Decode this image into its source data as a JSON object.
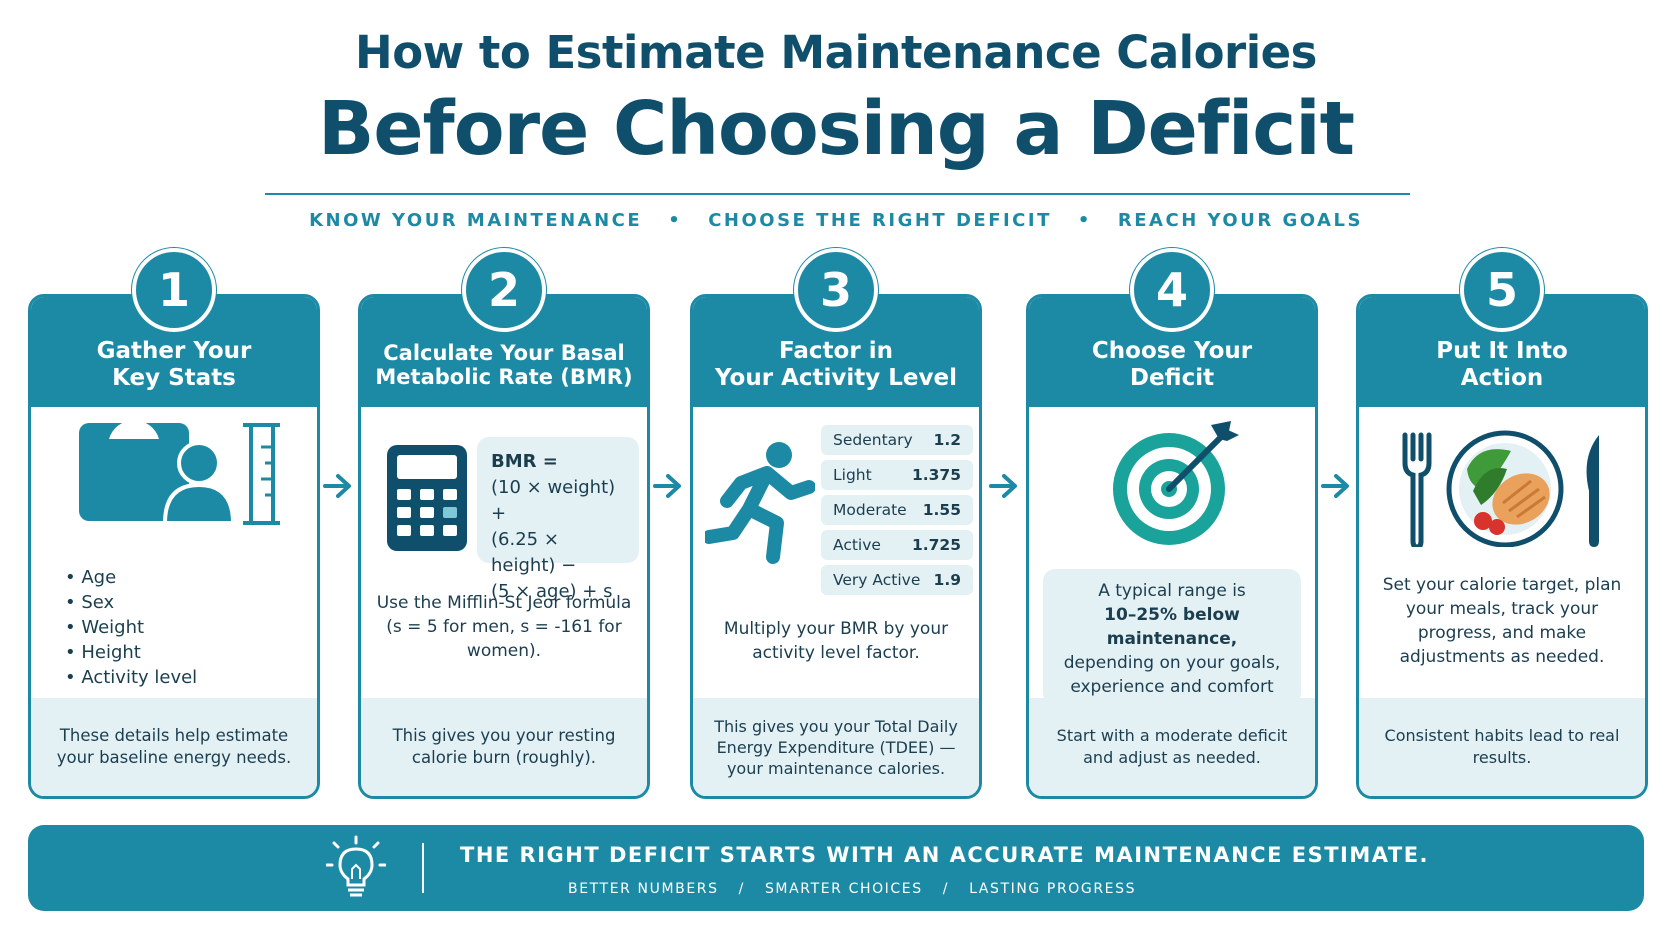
{
  "header": {
    "title_line1": "How to Estimate Maintenance Calories",
    "title_line2": "Before Choosing a Deficit",
    "tagline": [
      "KNOW YOUR MAINTENANCE",
      "CHOOSE THE RIGHT DEFICIT",
      "REACH YOUR GOALS"
    ],
    "tagline_separator": "•"
  },
  "steps": [
    {
      "number": "1",
      "title": "Gather Your\nKey Stats",
      "icon": "scale-person-ruler-icon",
      "bullets": [
        "Age",
        "Sex",
        "Weight",
        "Height",
        "Activity level"
      ],
      "footer": "These details help estimate your baseline energy needs."
    },
    {
      "number": "2",
      "title": "Calculate Your Basal Metabolic Rate (BMR)",
      "icon": "calculator-icon",
      "formula_title": "BMR =",
      "formula_lines": [
        "(10 × weight) +",
        "(6.25 × height) −",
        "(5 × age) + s"
      ],
      "body": "Use the Mifflin-St Jeor formula (s = 5 for men, s = -161 for women).",
      "footer": "This gives you your resting calorie burn (roughly)."
    },
    {
      "number": "3",
      "title": "Factor in\nYour Activity Level",
      "icon": "runner-icon",
      "activity_levels": [
        {
          "label": "Sedentary",
          "factor": "1.2"
        },
        {
          "label": "Light",
          "factor": "1.375"
        },
        {
          "label": "Moderate",
          "factor": "1.55"
        },
        {
          "label": "Active",
          "factor": "1.725"
        },
        {
          "label": "Very Active",
          "factor": "1.9"
        }
      ],
      "body": "Multiply your BMR by your activity level factor.",
      "footer": "This gives you your Total Daily Energy Expenditure (TDEE) — your maintenance calories."
    },
    {
      "number": "4",
      "title": "Choose Your\nDeficit",
      "icon": "target-arrow-icon",
      "range_pre": "A typical range is",
      "range_bold": "10–25% below maintenance,",
      "range_post": "depending on your goals, experience and comfort level.",
      "footer": "Start with a moderate deficit and adjust as needed."
    },
    {
      "number": "5",
      "title": "Put It Into\nAction",
      "icon": "plate-fork-knife-icon",
      "body": "Set your calorie target, plan your meals, track your progress, and make adjustments as needed.",
      "footer": "Consistent habits lead to real results."
    }
  ],
  "banner": {
    "icon": "lightbulb-icon",
    "main": "THE RIGHT DEFICIT STARTS WITH AN ACCURATE MAINTENANCE ESTIMATE.",
    "sub": [
      "BETTER NUMBERS",
      "/",
      "SMARTER CHOICES",
      "/",
      "LASTING PROGRESS"
    ]
  },
  "colors": {
    "primary": "#1d8aa5",
    "title": "#0f4f6b",
    "light": "#e3f1f5",
    "text": "#1b3e4f"
  }
}
